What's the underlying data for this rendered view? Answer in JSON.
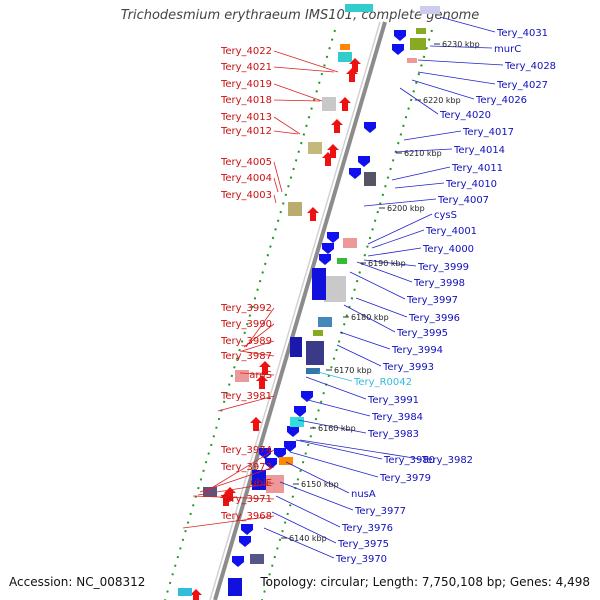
{
  "header": {
    "title": "Trichodesmium erythraeum IMS101, complete genome"
  },
  "footer": {
    "accession": "Accession: NC_008312",
    "summary": "Topology: circular; Length: 7,750,108 bp; Genes: 4,498"
  },
  "colors": {
    "forward_label": "#cc1111",
    "reverse_label": "#1111bb",
    "rna_label": "#33bbdd",
    "leader_line_forward": "#dd2222",
    "leader_line_reverse": "#2222cc",
    "backbone": "#9a9a9a",
    "gc_dots": "#22aa22",
    "scale_text": "#222222"
  },
  "scale_ticks": [
    "6140 kbp",
    "6150 kbp",
    "6160 kbp",
    "6170 kbp",
    "6180 kbp",
    "6190 kbp",
    "6200 kbp",
    "6210 kbp",
    "6220 kbp",
    "6230 kbp"
  ],
  "left_labels": [
    "Tery_4022",
    "Tery_4021",
    "Tery_4019",
    "Tery_4018",
    "Tery_4013",
    "Tery_4012",
    "Tery_4005",
    "Tery_4004",
    "Tery_4003",
    "Tery_3992",
    "Tery_3990",
    "Tery_3989",
    "Tery_3987",
    "argS",
    "Tery_3981",
    "Tery_3974",
    "Tery_3973",
    "ubiE",
    "Tery_3971",
    "Tery_3968"
  ],
  "right_labels": [
    {
      "text": "Tery_4031",
      "kind": "gene"
    },
    {
      "text": "murC",
      "kind": "gene"
    },
    {
      "text": "Tery_4028",
      "kind": "gene"
    },
    {
      "text": "Tery_4027",
      "kind": "gene"
    },
    {
      "text": "Tery_4026",
      "kind": "gene"
    },
    {
      "text": "Tery_4020",
      "kind": "gene"
    },
    {
      "text": "Tery_4017",
      "kind": "gene"
    },
    {
      "text": "Tery_4014",
      "kind": "gene"
    },
    {
      "text": "Tery_4011",
      "kind": "gene"
    },
    {
      "text": "Tery_4010",
      "kind": "gene"
    },
    {
      "text": "Tery_4007",
      "kind": "gene"
    },
    {
      "text": "cysS",
      "kind": "gene"
    },
    {
      "text": "Tery_4001",
      "kind": "gene"
    },
    {
      "text": "Tery_4000",
      "kind": "gene"
    },
    {
      "text": "Tery_3999",
      "kind": "gene"
    },
    {
      "text": "Tery_3998",
      "kind": "gene"
    },
    {
      "text": "Tery_3997",
      "kind": "gene"
    },
    {
      "text": "Tery_3996",
      "kind": "gene"
    },
    {
      "text": "Tery_3995",
      "kind": "gene"
    },
    {
      "text": "Tery_3994",
      "kind": "gene"
    },
    {
      "text": "Tery_3993",
      "kind": "gene"
    },
    {
      "text": "Tery_R0042",
      "kind": "rna"
    },
    {
      "text": "Tery_3991",
      "kind": "gene"
    },
    {
      "text": "Tery_3984",
      "kind": "gene"
    },
    {
      "text": "Tery_3983",
      "kind": "gene"
    },
    {
      "text": "Tery_3980",
      "kind": "gene"
    },
    {
      "text": "Tery_3982",
      "kind": "gene"
    },
    {
      "text": "Tery_3979",
      "kind": "gene"
    },
    {
      "text": "nusA",
      "kind": "gene"
    },
    {
      "text": "Tery_3977",
      "kind": "gene"
    },
    {
      "text": "Tery_3976",
      "kind": "gene"
    },
    {
      "text": "Tery_3975",
      "kind": "gene"
    },
    {
      "text": "Tery_3970",
      "kind": "gene"
    }
  ]
}
